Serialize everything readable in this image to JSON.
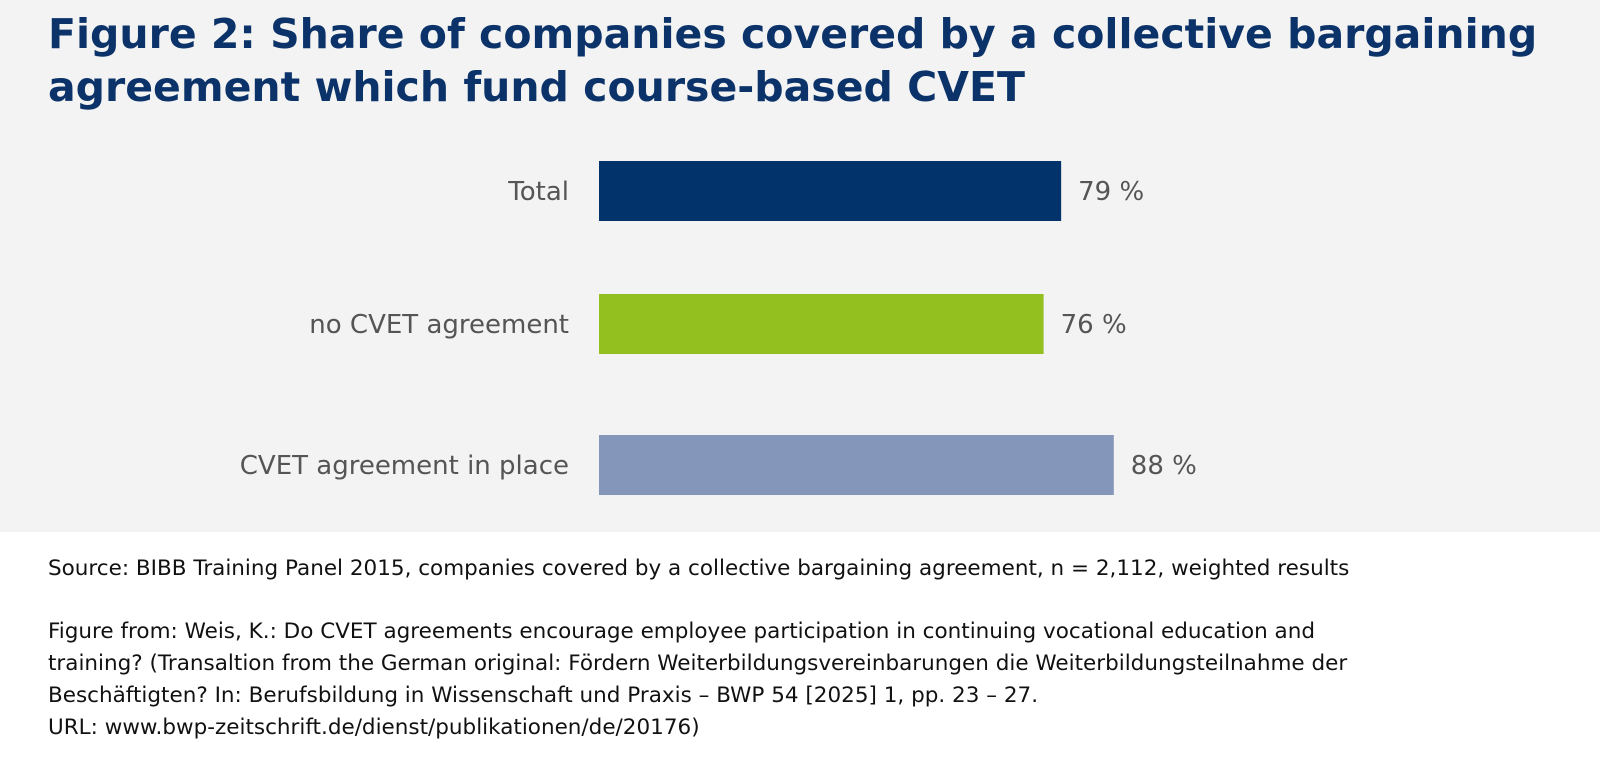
{
  "title_lines": [
    "Figure 2: Share of companies covered by a collective bargaining",
    "agreement which fund course-based CVET"
  ],
  "chart_data": {
    "type": "bar",
    "orientation": "horizontal",
    "categories": [
      "Total",
      "no CVET agreement",
      "CVET agreement in place"
    ],
    "values": [
      79,
      76,
      88
    ],
    "value_labels": [
      "79 %",
      "76 %",
      "88 %"
    ],
    "colors": [
      "#02336b",
      "#93c01f",
      "#8496ba"
    ],
    "xlim": [
      0,
      100
    ],
    "grid": false
  },
  "footer": {
    "source": "Source: BIBB Training Panel 2015, companies covered by a collective bargaining agreement, n = 2,112, weighted results",
    "citation_lines": [
      "Figure from: Weis, K.: Do CVET agreements encourage employee participation in continuing vocational education and",
      "training? (Transaltion from the German original: Fördern Weiterbildungsvereinbarungen die Weiterbildungsteilnahme der",
      "Beschäftigten? In: Berufsbildung in Wissenschaft und Praxis – BWP 54 [2025] 1, pp. 23 – 27.",
      "URL: www.bwp-zeitschrift.de/dienst/publikationen/de/20176)"
    ]
  }
}
